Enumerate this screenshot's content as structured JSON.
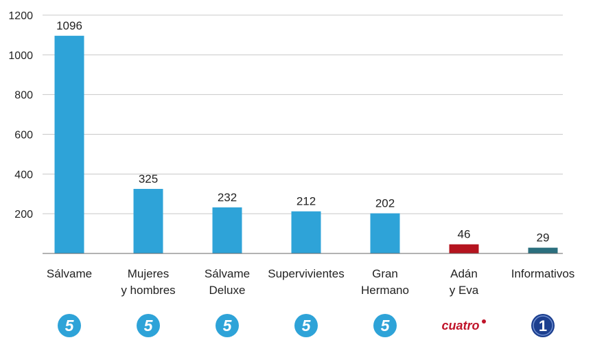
{
  "chart_data": {
    "type": "bar",
    "categories": [
      [
        "Sálvame"
      ],
      [
        "Mujeres",
        "y hombres"
      ],
      [
        "Sálvame",
        "Deluxe"
      ],
      [
        "Supervivientes"
      ],
      [
        "Gran",
        "Hermano"
      ],
      [
        "Adán",
        "y Eva"
      ],
      [
        "Informativos"
      ]
    ],
    "values": [
      1096,
      325,
      232,
      212,
      202,
      46,
      29
    ],
    "value_labels": [
      "1096",
      "325",
      "232",
      "212",
      "202",
      "46",
      "29"
    ],
    "bar_colors": [
      "#2ea3d8",
      "#2ea3d8",
      "#2ea3d8",
      "#2ea3d8",
      "#2ea3d8",
      "#b5141f",
      "#2b6f7e"
    ],
    "ylim": [
      0,
      1200
    ],
    "yticks": [
      200,
      400,
      600,
      800,
      1000,
      1200
    ],
    "ytick_labels": [
      "200",
      "400",
      "600",
      "800",
      "1000",
      "1200"
    ],
    "grid": true,
    "title": "",
    "xlabel": "",
    "ylabel": "",
    "logos": [
      {
        "icon": "telecinco-logo",
        "text": "5",
        "color": "#2ea3d8"
      },
      {
        "icon": "telecinco-logo",
        "text": "5",
        "color": "#2ea3d8"
      },
      {
        "icon": "telecinco-logo",
        "text": "5",
        "color": "#2ea3d8"
      },
      {
        "icon": "telecinco-logo",
        "text": "5",
        "color": "#2ea3d8"
      },
      {
        "icon": "telecinco-logo",
        "text": "5",
        "color": "#2ea3d8"
      },
      {
        "icon": "cuatro-logo",
        "text": "cuatro",
        "color": "#c0142a"
      },
      {
        "icon": "la1-logo",
        "text": "1",
        "color": "#1c3f8f"
      }
    ]
  }
}
